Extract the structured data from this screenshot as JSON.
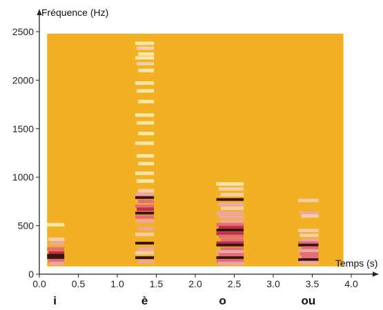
{
  "chart_data": {
    "type": "heatmap",
    "subtype": "spectrogram",
    "ylabel": "Fréquence (Hz)",
    "xlabel": "Temps (s)",
    "xlim": [
      0,
      4.2
    ],
    "ylim": [
      0,
      2550
    ],
    "x_ticks": [
      0.0,
      0.5,
      1.0,
      1.5,
      2.0,
      2.5,
      3.0,
      3.5,
      4.0
    ],
    "x_tick_labels": [
      "0.0",
      "0.5",
      "1.0",
      "1.5",
      "2.0",
      "2.5",
      "3.0",
      "3.5",
      "4.0"
    ],
    "y_ticks": [
      0,
      500,
      1000,
      1500,
      2000,
      2500
    ],
    "y_tick_labels": [
      "0",
      "500",
      "1000",
      "1500",
      "2000",
      "2500"
    ],
    "plot_region": {
      "x_start": 0.1,
      "x_end": 3.9,
      "y_start": 80,
      "y_end": 2480
    },
    "background_color": "#F2B024",
    "vowel_labels": [
      {
        "text": "i",
        "x": 0.2
      },
      {
        "text": "è",
        "x": 1.35
      },
      {
        "text": "o",
        "x": 2.35
      },
      {
        "text": "ou",
        "x": 3.45
      }
    ],
    "segments": [
      {
        "label": "i",
        "x_start": 0.1,
        "x_end": 0.32,
        "bands": [
          {
            "f": 510,
            "intensity": 0.2
          },
          {
            "f": 360,
            "intensity": 0.3
          },
          {
            "f": 320,
            "intensity": 0.35
          },
          {
            "f": 260,
            "intensity": 0.5
          },
          {
            "f": 220,
            "intensity": 0.7
          },
          {
            "f": 195,
            "intensity": 0.85
          },
          {
            "f": 170,
            "intensity": 1.0
          },
          {
            "f": 140,
            "intensity": 0.6
          },
          {
            "f": 110,
            "intensity": 0.4
          }
        ]
      },
      {
        "label": "è",
        "x_start": 1.23,
        "x_end": 1.47,
        "bands": [
          {
            "f": 2380,
            "intensity": 0.15
          },
          {
            "f": 2330,
            "intensity": 0.25
          },
          {
            "f": 2270,
            "intensity": 0.15
          },
          {
            "f": 2230,
            "intensity": 0.2
          },
          {
            "f": 2170,
            "intensity": 0.25
          },
          {
            "f": 2100,
            "intensity": 0.15
          },
          {
            "f": 1970,
            "intensity": 0.15
          },
          {
            "f": 1890,
            "intensity": 0.2
          },
          {
            "f": 1780,
            "intensity": 0.15
          },
          {
            "f": 1640,
            "intensity": 0.15
          },
          {
            "f": 1560,
            "intensity": 0.2
          },
          {
            "f": 1450,
            "intensity": 0.15
          },
          {
            "f": 1350,
            "intensity": 0.15
          },
          {
            "f": 1220,
            "intensity": 0.15
          },
          {
            "f": 1140,
            "intensity": 0.15
          },
          {
            "f": 1040,
            "intensity": 0.15
          },
          {
            "f": 960,
            "intensity": 0.2
          },
          {
            "f": 860,
            "intensity": 0.3
          },
          {
            "f": 820,
            "intensity": 0.45
          },
          {
            "f": 790,
            "intensity": 0.95
          },
          {
            "f": 750,
            "intensity": 0.5
          },
          {
            "f": 700,
            "intensity": 0.55
          },
          {
            "f": 670,
            "intensity": 0.75
          },
          {
            "f": 630,
            "intensity": 1.0
          },
          {
            "f": 590,
            "intensity": 0.6
          },
          {
            "f": 550,
            "intensity": 0.4
          },
          {
            "f": 470,
            "intensity": 0.35
          },
          {
            "f": 410,
            "intensity": 0.3
          },
          {
            "f": 320,
            "intensity": 0.9
          },
          {
            "f": 260,
            "intensity": 0.35
          },
          {
            "f": 220,
            "intensity": 0.3
          },
          {
            "f": 170,
            "intensity": 0.95
          },
          {
            "f": 130,
            "intensity": 0.35
          }
        ]
      },
      {
        "label": "o",
        "x_start": 2.27,
        "x_end": 2.62,
        "bands": [
          {
            "f": 930,
            "intensity": 0.2
          },
          {
            "f": 880,
            "intensity": 0.25
          },
          {
            "f": 820,
            "intensity": 0.3
          },
          {
            "f": 770,
            "intensity": 0.85
          },
          {
            "f": 720,
            "intensity": 0.35
          },
          {
            "f": 680,
            "intensity": 0.3
          },
          {
            "f": 630,
            "intensity": 0.4
          },
          {
            "f": 590,
            "intensity": 0.35
          },
          {
            "f": 540,
            "intensity": 0.45
          },
          {
            "f": 510,
            "intensity": 0.6
          },
          {
            "f": 480,
            "intensity": 0.8
          },
          {
            "f": 455,
            "intensity": 1.0
          },
          {
            "f": 420,
            "intensity": 0.75
          },
          {
            "f": 390,
            "intensity": 0.55
          },
          {
            "f": 350,
            "intensity": 0.5
          },
          {
            "f": 320,
            "intensity": 0.7
          },
          {
            "f": 300,
            "intensity": 0.95
          },
          {
            "f": 260,
            "intensity": 0.5
          },
          {
            "f": 230,
            "intensity": 0.45
          },
          {
            "f": 200,
            "intensity": 0.6
          },
          {
            "f": 170,
            "intensity": 1.0
          },
          {
            "f": 140,
            "intensity": 0.55
          },
          {
            "f": 110,
            "intensity": 0.4
          }
        ]
      },
      {
        "label": "ou",
        "x_start": 3.32,
        "x_end": 3.58,
        "bands": [
          {
            "f": 760,
            "intensity": 0.3
          },
          {
            "f": 630,
            "intensity": 0.35
          },
          {
            "f": 600,
            "intensity": 0.3
          },
          {
            "f": 450,
            "intensity": 0.3
          },
          {
            "f": 400,
            "intensity": 0.3
          },
          {
            "f": 350,
            "intensity": 0.45
          },
          {
            "f": 320,
            "intensity": 0.6
          },
          {
            "f": 300,
            "intensity": 0.95
          },
          {
            "f": 270,
            "intensity": 0.5
          },
          {
            "f": 240,
            "intensity": 0.45
          },
          {
            "f": 210,
            "intensity": 0.5
          },
          {
            "f": 180,
            "intensity": 0.6
          },
          {
            "f": 150,
            "intensity": 0.9
          },
          {
            "f": 120,
            "intensity": 0.45
          }
        ]
      }
    ]
  }
}
